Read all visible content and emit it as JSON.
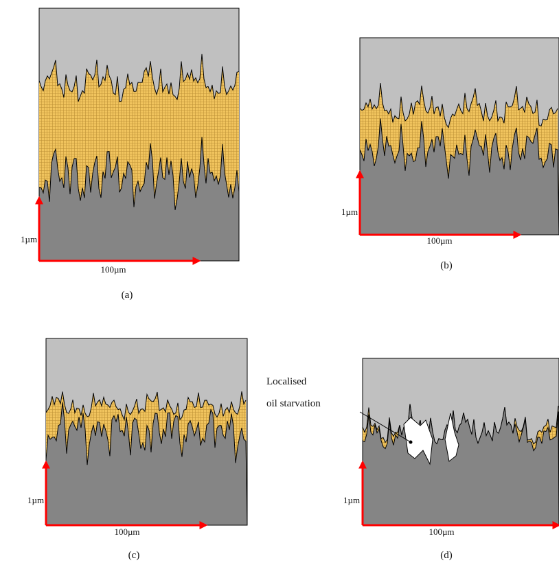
{
  "panels": [
    {
      "label": "(a)",
      "y_axis_label": "1µm",
      "x_axis_label": "100µm"
    },
    {
      "label": "(b)",
      "y_axis_label": "1µm",
      "x_axis_label": "100µm"
    },
    {
      "label": "(c)",
      "y_axis_label": "1µm",
      "x_axis_label": "100µm"
    },
    {
      "label": "(d)",
      "y_axis_label": "1µm",
      "x_axis_label": "100µm"
    }
  ],
  "annotation": {
    "lines": [
      "Localised",
      "oil starvation"
    ]
  }
}
